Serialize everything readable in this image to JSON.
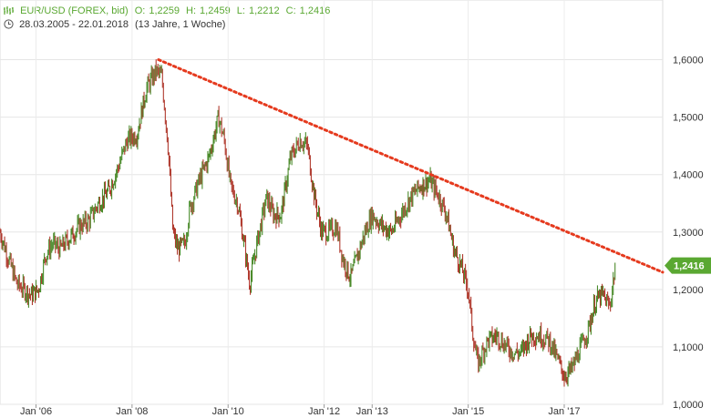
{
  "header": {
    "symbol": "EUR/USD (FOREX, bid)",
    "open_label": "O:",
    "open": "1,2259",
    "high_label": "H:",
    "high": "1,2459",
    "low_label": "L:",
    "low": "1,2212",
    "close_label": "C:",
    "close": "1,2416",
    "date_range": "28.03.2005 - 22.01.2018",
    "period": "(13 Jahre, 1 Woche)"
  },
  "colors": {
    "accent": "#5aa832",
    "up": "#4a8a2a",
    "down": "#b03a2e",
    "trendline": "#e53a1e",
    "last_price_bg": "#5aa832"
  },
  "icons": {
    "chart_icon": "bar-chart-icon",
    "range_icon": "clock-icon"
  },
  "chart_data": {
    "type": "line",
    "title": "EUR/USD (FOREX, bid)",
    "ylim": [
      1.0,
      1.65
    ],
    "y_ticks": [
      "1,0000",
      "1,1000",
      "1,2000",
      "1,3000",
      "1,4000",
      "1,5000",
      "1,6000"
    ],
    "y_tick_values": [
      1.0,
      1.1,
      1.2,
      1.3,
      1.4,
      1.5,
      1.6
    ],
    "x_tick_labels": [
      "Jan '06",
      "Jan '08",
      "Jan '10",
      "Jan '12",
      "Jan '13",
      "Jan '15",
      "Jan '17"
    ],
    "x_tick_values": [
      2006.0,
      2008.0,
      2010.0,
      2012.0,
      2013.0,
      2015.0,
      2017.0
    ],
    "xlim": [
      2005.25,
      2019.05
    ],
    "grid": true,
    "last_price_label": "1,2416",
    "last_price": 1.2416,
    "series": [
      {
        "x": [
          2005.25,
          2005.4,
          2005.6,
          2005.75,
          2005.9,
          2006.05,
          2006.2,
          2006.35,
          2006.5,
          2006.7,
          2006.9,
          2007.1,
          2007.3,
          2007.5,
          2007.7,
          2007.9,
          2008.1,
          2008.3,
          2008.5,
          2008.62,
          2008.75,
          2008.85,
          2008.95,
          2009.1,
          2009.2,
          2009.4,
          2009.6,
          2009.8,
          2009.92,
          2010.05,
          2010.2,
          2010.35,
          2010.45,
          2010.6,
          2010.8,
          2010.95,
          2011.1,
          2011.3,
          2011.5,
          2011.65,
          2011.8,
          2011.95,
          2012.1,
          2012.25,
          2012.4,
          2012.55,
          2012.7,
          2012.85,
          2013.0,
          2013.2,
          2013.4,
          2013.6,
          2013.8,
          2014.0,
          2014.2,
          2014.4,
          2014.55,
          2014.7,
          2014.85,
          2015.0,
          2015.1,
          2015.2,
          2015.4,
          2015.6,
          2015.8,
          2015.95,
          2016.1,
          2016.3,
          2016.5,
          2016.7,
          2016.85,
          2017.0,
          2017.15,
          2017.3,
          2017.5,
          2017.65,
          2017.8,
          2017.95,
          2018.06
        ],
        "y": [
          1.3,
          1.26,
          1.21,
          1.2,
          1.19,
          1.2,
          1.26,
          1.28,
          1.27,
          1.29,
          1.31,
          1.32,
          1.35,
          1.37,
          1.41,
          1.46,
          1.47,
          1.55,
          1.58,
          1.57,
          1.45,
          1.3,
          1.27,
          1.28,
          1.34,
          1.39,
          1.43,
          1.5,
          1.46,
          1.38,
          1.35,
          1.27,
          1.21,
          1.28,
          1.36,
          1.33,
          1.33,
          1.43,
          1.46,
          1.45,
          1.36,
          1.3,
          1.3,
          1.31,
          1.25,
          1.22,
          1.26,
          1.3,
          1.33,
          1.31,
          1.3,
          1.33,
          1.36,
          1.38,
          1.39,
          1.36,
          1.33,
          1.27,
          1.24,
          1.2,
          1.12,
          1.07,
          1.11,
          1.12,
          1.1,
          1.09,
          1.09,
          1.12,
          1.12,
          1.11,
          1.08,
          1.05,
          1.06,
          1.09,
          1.13,
          1.18,
          1.19,
          1.17,
          1.24
        ]
      }
    ],
    "trendline": {
      "x": [
        2008.55,
        2019.05
      ],
      "y": [
        1.6,
        1.23
      ]
    }
  }
}
